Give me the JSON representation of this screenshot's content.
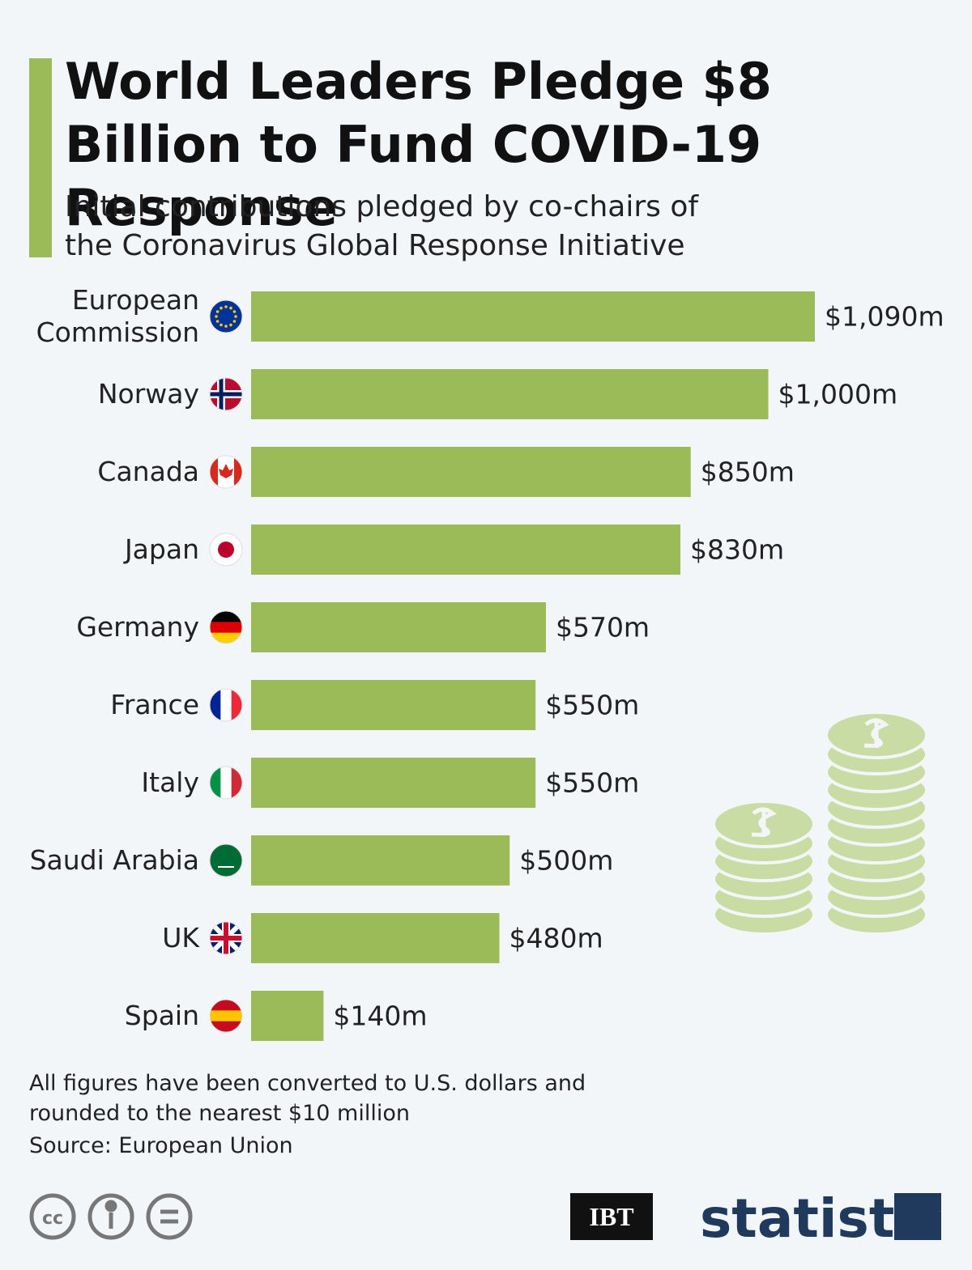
{
  "chart_data": {
    "type": "bar",
    "orientation": "horizontal",
    "title": "World Leaders Pledge $8 Billion to Fund COVID-19 Response",
    "subtitle": "Initial contributions pledged by co-chairs of the Coronavirus Global Response Initiative",
    "categories": [
      "European Commission",
      "Norway",
      "Canada",
      "Japan",
      "Germany",
      "France",
      "Italy",
      "Saudi Arabia",
      "UK",
      "Spain"
    ],
    "values": [
      1090,
      1000,
      850,
      830,
      570,
      550,
      550,
      500,
      480,
      140
    ],
    "value_labels": [
      "$1,090m",
      "$1,000m",
      "$850m",
      "$830m",
      "$570m",
      "$550m",
      "$550m",
      "$500m",
      "$480m",
      "$140m"
    ],
    "color": "#9bbb59",
    "note": "All figures have been converted to U.S. dollars and rounded to the nearest $10 million",
    "source": "Source: European Union",
    "license": "cc",
    "logos": [
      "IBT",
      "statista"
    ]
  }
}
